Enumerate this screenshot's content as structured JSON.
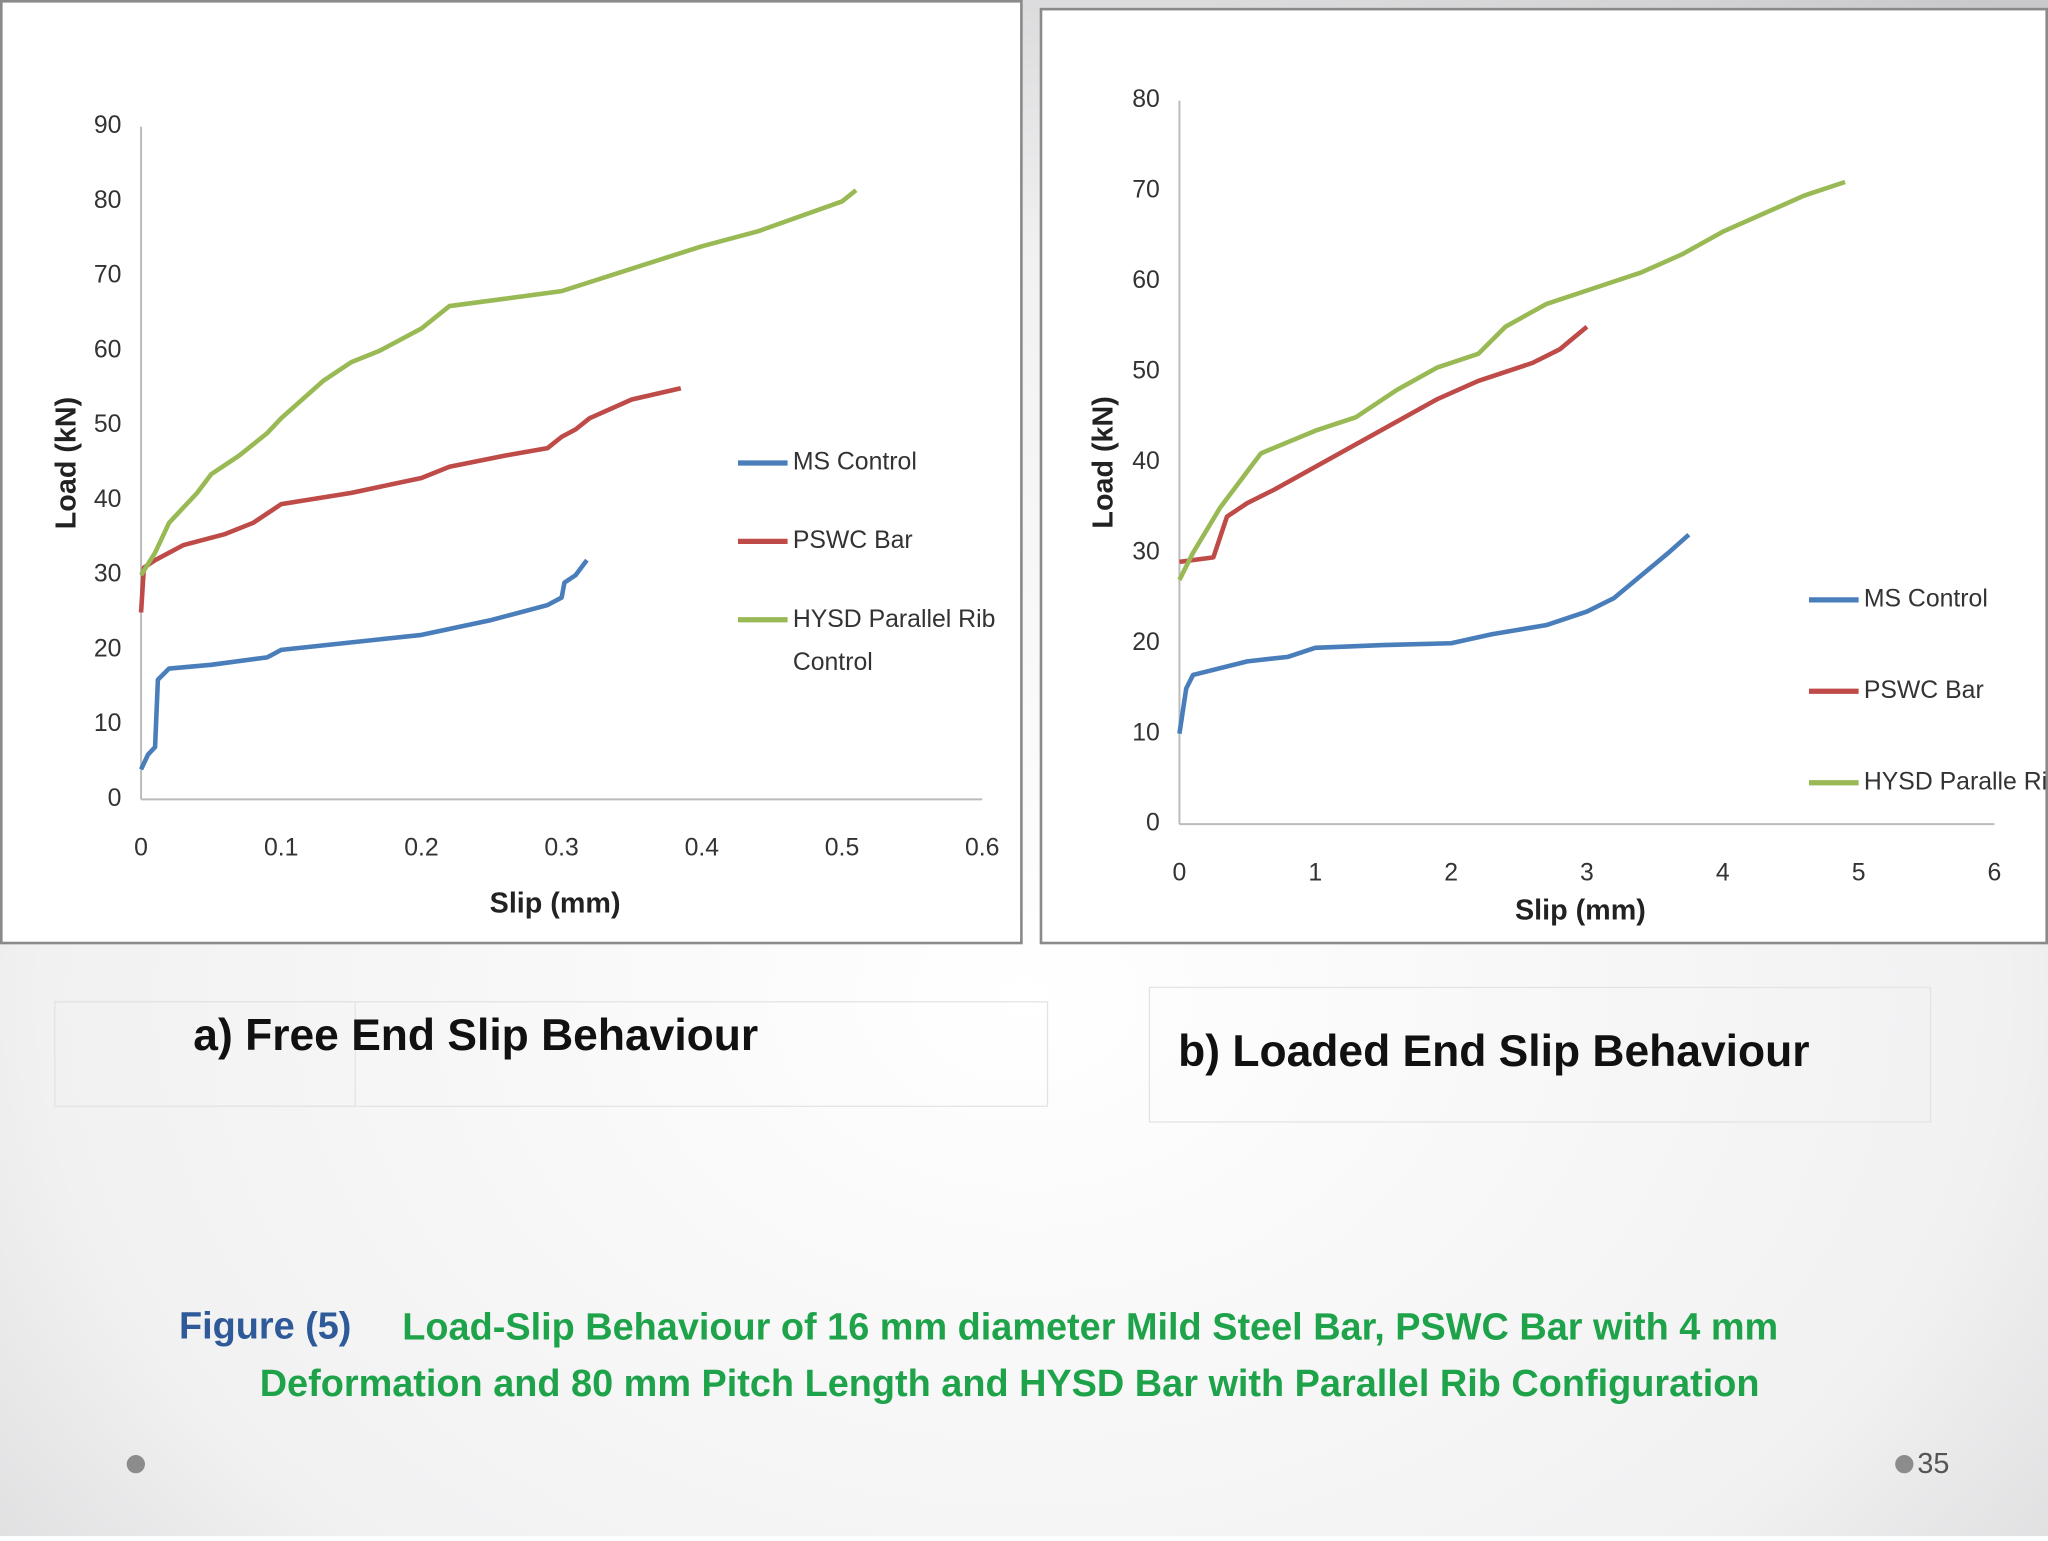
{
  "chart_data": [
    {
      "type": "line",
      "xlabel": "Slip (mm)",
      "ylabel": "Load (kN)",
      "xlim": [
        0,
        0.6
      ],
      "xticks": [
        0,
        0.1,
        0.2,
        0.3,
        0.4,
        0.5,
        0.6
      ],
      "ylim": [
        0,
        90
      ],
      "yticks": [
        0,
        10,
        20,
        30,
        40,
        50,
        60,
        70,
        80,
        90
      ],
      "grid": false,
      "legend": "right",
      "series": [
        {
          "name": "MS Control",
          "color": "#4a7ebb",
          "x": [
            0,
            0.005,
            0.01,
            0.012,
            0.02,
            0.05,
            0.09,
            0.1,
            0.15,
            0.2,
            0.25,
            0.29,
            0.3,
            0.302,
            0.31,
            0.318
          ],
          "values": [
            4,
            6,
            7,
            16,
            17.5,
            18,
            19,
            20,
            21,
            22,
            24,
            26,
            27,
            29,
            30,
            32
          ]
        },
        {
          "name": "PSWC Bar",
          "color": "#be4b48",
          "x": [
            0,
            0.002,
            0.01,
            0.03,
            0.06,
            0.08,
            0.1,
            0.15,
            0.2,
            0.22,
            0.26,
            0.29,
            0.3,
            0.31,
            0.32,
            0.35,
            0.385
          ],
          "values": [
            25,
            31,
            32,
            34,
            35.5,
            37,
            39.5,
            41,
            43,
            44.5,
            46,
            47,
            48.5,
            49.5,
            51,
            53.5,
            55
          ]
        },
        {
          "name": "HYSD Parallel Rib Control",
          "color": "#98b954",
          "x": [
            0,
            0.01,
            0.02,
            0.04,
            0.05,
            0.07,
            0.09,
            0.1,
            0.13,
            0.15,
            0.17,
            0.2,
            0.22,
            0.3,
            0.35,
            0.4,
            0.44,
            0.5,
            0.51
          ],
          "values": [
            30,
            33,
            37,
            41,
            43.5,
            46,
            49,
            51,
            56,
            58.5,
            60,
            63,
            66,
            68,
            71,
            74,
            76,
            80,
            81.5
          ]
        }
      ]
    },
    {
      "type": "line",
      "xlabel": "Slip (mm)",
      "ylabel": "Load (kN)",
      "xlim": [
        0,
        6
      ],
      "xticks": [
        0,
        1,
        2,
        3,
        4,
        5,
        6
      ],
      "ylim": [
        0,
        80
      ],
      "yticks": [
        0,
        10,
        20,
        30,
        40,
        50,
        60,
        70,
        80
      ],
      "grid": false,
      "legend": "lower right",
      "series": [
        {
          "name": "MS Control",
          "color": "#4a7ebb",
          "x": [
            0,
            0.05,
            0.1,
            0.5,
            0.8,
            1,
            1.5,
            2,
            2.3,
            2.7,
            3,
            3.2,
            3.4,
            3.6,
            3.75
          ],
          "values": [
            10,
            15,
            16.5,
            18,
            18.5,
            19.5,
            19.8,
            20,
            21,
            22,
            23.5,
            25,
            27.5,
            30,
            32
          ]
        },
        {
          "name": "PSWC Bar",
          "color": "#be4b48",
          "x": [
            0,
            0.25,
            0.35,
            0.5,
            0.7,
            1,
            1.3,
            1.6,
            1.9,
            2.2,
            2.6,
            2.8,
            3
          ],
          "values": [
            29,
            29.5,
            34,
            35.5,
            37,
            39.5,
            42,
            44.5,
            47,
            49,
            51,
            52.5,
            55
          ]
        },
        {
          "name": "HYSD Paralle Ribs",
          "color": "#98b954",
          "x": [
            0,
            0.1,
            0.3,
            0.5,
            0.6,
            1,
            1.3,
            1.6,
            1.9,
            2.2,
            2.4,
            2.7,
            3.1,
            3.4,
            3.7,
            4,
            4.3,
            4.6,
            4.9
          ],
          "values": [
            27,
            30,
            35,
            39,
            41,
            43.5,
            45,
            48,
            50.5,
            52,
            55,
            57.5,
            59.5,
            61,
            63,
            65.5,
            67.5,
            69.5,
            71
          ]
        }
      ]
    }
  ],
  "captions": [
    "a) Free End Slip Behaviour",
    "b) Loaded End Slip Behaviour"
  ],
  "figure_label": "Figure (5)",
  "figure_caption": [
    "Load-Slip Behaviour of 16 mm diameter Mild Steel Bar, PSWC Bar with 4 mm",
    "Deformation and 80 mm Pitch Length and HYSD Bar with Parallel Rib Configuration"
  ],
  "page_number": "35"
}
